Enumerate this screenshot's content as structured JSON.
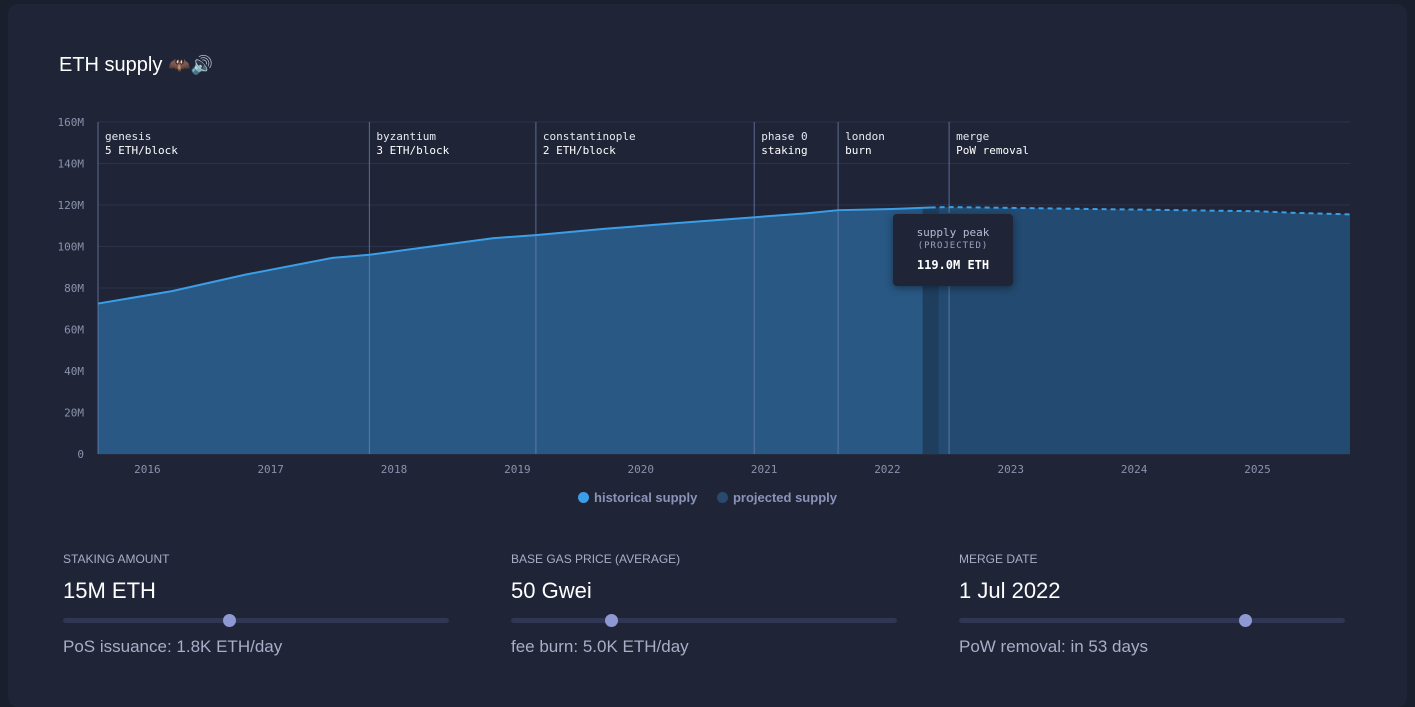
{
  "header": {
    "title": "ETH supply",
    "emoji": "🦇🔊"
  },
  "tooltip": {
    "title": "supply peak",
    "subtitle": "(PROJECTED)",
    "value": "119.0M ETH"
  },
  "legend": [
    {
      "label": "historical supply",
      "color": "#3a9fe8"
    },
    {
      "label": "projected supply",
      "color": "#284a6e"
    }
  ],
  "controls": [
    {
      "label": "STAKING AMOUNT",
      "value": "15M ETH",
      "sub": "PoS issuance: 1.8K ETH/day",
      "slider": 0.43
    },
    {
      "label": "BASE GAS PRICE (AVERAGE)",
      "value": "50 Gwei",
      "sub": "fee burn: 5.0K ETH/day",
      "slider": 0.26
    },
    {
      "label": "MERGE DATE",
      "value": "1 Jul 2022",
      "sub": "PoW removal: in 53 days",
      "slider": 0.74
    }
  ],
  "chart_data": {
    "type": "area",
    "title": "ETH supply",
    "ylim": [
      0,
      160
    ],
    "xlim": [
      2015.6,
      2025.75
    ],
    "y_ticks": [
      {
        "value": 0,
        "label": "0"
      },
      {
        "value": 20,
        "label": "20M"
      },
      {
        "value": 40,
        "label": "40M"
      },
      {
        "value": 60,
        "label": "60M"
      },
      {
        "value": 80,
        "label": "80M"
      },
      {
        "value": 100,
        "label": "100M"
      },
      {
        "value": 120,
        "label": "120M"
      },
      {
        "value": 140,
        "label": "140M"
      },
      {
        "value": 160,
        "label": "160M"
      }
    ],
    "x_ticks": [
      {
        "value": 2016.0,
        "label": "2016"
      },
      {
        "value": 2017.0,
        "label": "2017"
      },
      {
        "value": 2018.0,
        "label": "2018"
      },
      {
        "value": 2019.0,
        "label": "2019"
      },
      {
        "value": 2020.0,
        "label": "2020"
      },
      {
        "value": 2021.0,
        "label": "2021"
      },
      {
        "value": 2022.0,
        "label": "2022"
      },
      {
        "value": 2023.0,
        "label": "2023"
      },
      {
        "value": 2024.0,
        "label": "2024"
      },
      {
        "value": 2025.0,
        "label": "2025"
      }
    ],
    "series": [
      {
        "name": "historical supply",
        "style": "solid",
        "x": [
          2015.6,
          2016.2,
          2016.8,
          2017.5,
          2017.8,
          2018.3,
          2018.8,
          2019.15,
          2019.7,
          2020.3,
          2020.9,
          2021.35,
          2021.6,
          2022.0,
          2022.35
        ],
        "y": [
          72.5,
          78.5,
          86.5,
          94.5,
          96.0,
          100.0,
          104.0,
          105.5,
          108.5,
          111.3,
          114.0,
          116.0,
          117.5,
          118.0,
          118.8
        ]
      },
      {
        "name": "projected supply",
        "style": "dashed",
        "x": [
          2022.35,
          2022.5,
          2023.0,
          2023.5,
          2024.0,
          2024.5,
          2025.0,
          2025.3,
          2025.75
        ],
        "y": [
          118.8,
          119.0,
          118.6,
          118.2,
          117.8,
          117.4,
          117.0,
          116.2,
          115.5
        ]
      }
    ],
    "annotations": [
      {
        "x": 2015.6,
        "name": "genesis",
        "detail": "5 ETH/block"
      },
      {
        "x": 2017.8,
        "name": "byzantium",
        "detail": "3 ETH/block"
      },
      {
        "x": 2019.15,
        "name": "constantinople",
        "detail": "2 ETH/block"
      },
      {
        "x": 2020.92,
        "name": "phase 0",
        "detail": "staking"
      },
      {
        "x": 2021.6,
        "name": "london",
        "detail": "burn"
      },
      {
        "x": 2022.5,
        "name": "merge",
        "detail": "PoW removal"
      }
    ],
    "peak": {
      "x": 2022.5,
      "y": 119.0
    },
    "projection_start": 2022.35
  }
}
